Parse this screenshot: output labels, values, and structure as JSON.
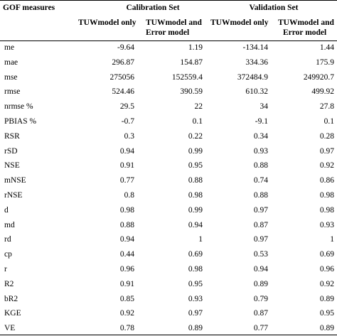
{
  "header": {
    "gof": "GOF measures",
    "calibration": "Calibration Set",
    "validation": "Validation Set",
    "tuw_only": "TUWmodel only",
    "tuw_error_line1": "TUWmodel and",
    "tuw_error_line2": "Error model"
  },
  "rows": [
    {
      "m": "me",
      "c1": "-9.64",
      "c2": "1.19",
      "v1": "-134.14",
      "v2": "1.44"
    },
    {
      "m": "mae",
      "c1": "296.87",
      "c2": "154.87",
      "v1": "334.36",
      "v2": "175.9"
    },
    {
      "m": "mse",
      "c1": "275056",
      "c2": "152559.4",
      "v1": "372484.9",
      "v2": "249920.7"
    },
    {
      "m": "rmse",
      "c1": "524.46",
      "c2": "390.59",
      "v1": "610.32",
      "v2": "499.92"
    },
    {
      "m": "nrmse %",
      "c1": "29.5",
      "c2": "22",
      "v1": "34",
      "v2": "27.8"
    },
    {
      "m": "PBIAS %",
      "c1": "-0.7",
      "c2": "0.1",
      "v1": "-9.1",
      "v2": "0.1"
    },
    {
      "m": "RSR",
      "c1": "0.3",
      "c2": "0.22",
      "v1": "0.34",
      "v2": "0.28"
    },
    {
      "m": "rSD",
      "c1": "0.94",
      "c2": "0.99",
      "v1": "0.93",
      "v2": "0.97"
    },
    {
      "m": "NSE",
      "c1": "0.91",
      "c2": "0.95",
      "v1": "0.88",
      "v2": "0.92"
    },
    {
      "m": "mNSE",
      "c1": "0.77",
      "c2": "0.88",
      "v1": "0.74",
      "v2": "0.86"
    },
    {
      "m": "rNSE",
      "c1": "0.8",
      "c2": "0.98",
      "v1": "0.88",
      "v2": "0.98"
    },
    {
      "m": "d",
      "c1": "0.98",
      "c2": "0.99",
      "v1": "0.97",
      "v2": "0.98"
    },
    {
      "m": "md",
      "c1": "0.88",
      "c2": "0.94",
      "v1": "0.87",
      "v2": "0.93"
    },
    {
      "m": "rd",
      "c1": "0.94",
      "c2": "1",
      "v1": "0.97",
      "v2": "1"
    },
    {
      "m": "cp",
      "c1": "0.44",
      "c2": "0.69",
      "v1": "0.53",
      "v2": "0.69"
    },
    {
      "m": "r",
      "c1": "0.96",
      "c2": "0.98",
      "v1": "0.94",
      "v2": "0.96"
    },
    {
      "m": "R2",
      "c1": "0.91",
      "c2": "0.95",
      "v1": "0.89",
      "v2": "0.92"
    },
    {
      "m": "bR2",
      "c1": "0.85",
      "c2": "0.93",
      "v1": "0.79",
      "v2": "0.89"
    },
    {
      "m": "KGE",
      "c1": "0.92",
      "c2": "0.97",
      "v1": "0.87",
      "v2": "0.95"
    },
    {
      "m": "VE",
      "c1": "0.78",
      "c2": "0.89",
      "v1": "0.77",
      "v2": "0.89"
    }
  ]
}
